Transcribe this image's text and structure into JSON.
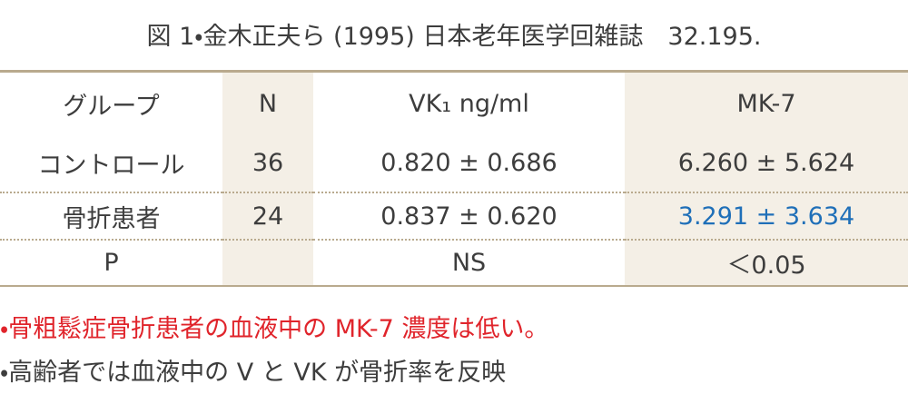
{
  "header": {
    "title": "図 1・金木正夫ら (1995) 日本老年医学回雑誌　32.195."
  },
  "table": {
    "headers": [
      "グループ",
      "N",
      "VK₁ ng/ml",
      "MK-7"
    ],
    "rows": [
      [
        "コントロール",
        "36",
        "0.820 ± 0.686",
        "6.260 ± 5.624"
      ],
      [
        "骨折患者",
        "24",
        "0.837 ± 0.620",
        "3.291 ± 3.634"
      ],
      [
        "P",
        null,
        "NS",
        "＜0.05"
      ]
    ]
  },
  "notes": [
    "・骨粗鬆症骨折患者の血液中の MK-7 濃度は低い。",
    "・高齢者では血液中の V と VK が骨折率を反映"
  ]
}
